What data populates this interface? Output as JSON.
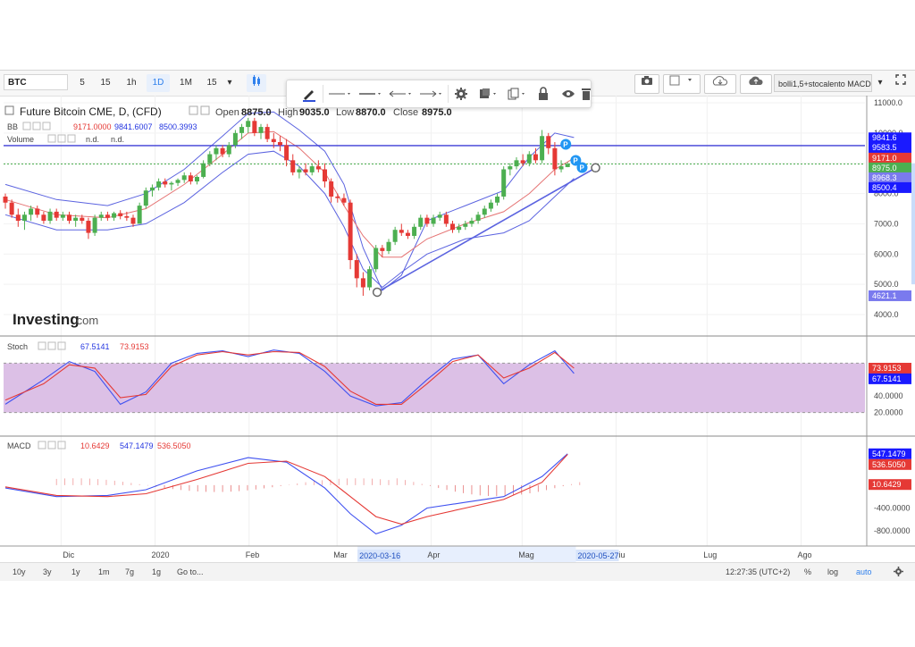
{
  "toolbar": {
    "symbol": "BTC",
    "intervals": [
      "5",
      "15",
      "1h",
      "1D",
      "1M",
      "15"
    ],
    "active_interval": "1D",
    "indicator_template": "bolli1,5+stocalento MACD"
  },
  "legend": {
    "title": "Future Bitcoin CME, D, (CFD)",
    "open_label": "Open",
    "open": "8875.0",
    "high_label": "High",
    "high": "9035.0",
    "low_label": "Low",
    "low": "8870.0",
    "close_label": "Close",
    "close": "8975.0",
    "bb_label": "BB",
    "bb_vals": [
      "9171.0000",
      "9841.6007",
      "8500.3993"
    ],
    "vol_label": "Volume",
    "vol_vals": [
      "n.d.",
      "n.d."
    ],
    "stoch_label": "Stoch",
    "stoch_vals": [
      "67.5141",
      "73.9153"
    ],
    "macd_label": "MACD",
    "macd_vals": [
      "10.6429",
      "547.1479",
      "536.5050"
    ]
  },
  "watermark": {
    "brand": "Investing",
    "suffix": ".com"
  },
  "colors": {
    "up": "#4caf50",
    "down": "#e53935",
    "bb_band": "#5b63e0",
    "bb_mid": "#e57373",
    "hline": "#3d3dd6",
    "trend": "#5b63e0",
    "stoch_fill": "#dcc0e6",
    "k_line": "#3f51f0",
    "d_line": "#e53935"
  },
  "price_axis": {
    "ticks": [
      "11000.0",
      "10000.0",
      "9000.0",
      "8000.0",
      "7000.0",
      "6000.0",
      "5000.0",
      "4000.0"
    ],
    "tags": [
      {
        "label": "9841.6",
        "color": "#1a1aff"
      },
      {
        "label": "9583.5",
        "color": "#1a1aff"
      },
      {
        "label": "9171.0",
        "color": "#e53935"
      },
      {
        "label": "8975.0",
        "color": "#4caf50"
      },
      {
        "label": "8968.3",
        "color": "#7a7aee"
      },
      {
        "label": "8500.4",
        "color": "#1a1aff"
      },
      {
        "label": "4621.1",
        "color": "#7a7aee"
      }
    ]
  },
  "stoch_axis": {
    "ticks": [
      "60.0000",
      "40.0000",
      "20.0000"
    ],
    "tags": [
      {
        "label": "73.9153",
        "color": "#e53935"
      },
      {
        "label": "67.5141",
        "color": "#1a1aff"
      }
    ]
  },
  "macd_axis": {
    "ticks": [
      "400.0000",
      "-400.0000",
      "-800.0000"
    ],
    "tags": [
      {
        "label": "547.1479",
        "color": "#1a1aff"
      },
      {
        "label": "536.5050",
        "color": "#e53935"
      },
      {
        "label": "10.6429",
        "color": "#e53935"
      }
    ]
  },
  "time_axis": {
    "labels": [
      "Dic",
      "2020",
      "Feb",
      "Mar",
      "Apr",
      "Mag",
      "Giu",
      "Lug",
      "Ago"
    ],
    "highlight_labels": [
      "2020-03-16",
      "2020-05-27"
    ]
  },
  "bottom_bar": {
    "ranges": [
      "10y",
      "3y",
      "1y",
      "1m",
      "7g",
      "1g",
      "Go to..."
    ],
    "clock": "12:27:35 (UTC+2)",
    "scale_opts": [
      "%",
      "log",
      "auto"
    ]
  },
  "chart_data": [
    {
      "type": "candlestick",
      "title": "Future Bitcoin CME, D, (CFD)",
      "x_range": [
        "2019-11-15",
        "2020-08-25"
      ],
      "ylim": [
        4000,
        11000
      ],
      "ohlc": [
        [
          7900,
          8000,
          7500,
          7700
        ],
        [
          7700,
          7800,
          7200,
          7300
        ],
        [
          7300,
          7500,
          6900,
          7100
        ],
        [
          7100,
          7400,
          6800,
          7300
        ],
        [
          7300,
          7600,
          7100,
          7500
        ],
        [
          7500,
          7600,
          7200,
          7300
        ],
        [
          7300,
          7400,
          7000,
          7100
        ],
        [
          7100,
          7500,
          7000,
          7400
        ],
        [
          7400,
          7500,
          7100,
          7200
        ],
        [
          7200,
          7400,
          7100,
          7300
        ],
        [
          7300,
          7400,
          7000,
          7100
        ],
        [
          7100,
          7300,
          6900,
          7200
        ],
        [
          7200,
          7300,
          7000,
          7100
        ],
        [
          7100,
          7200,
          6500,
          6700
        ],
        [
          6700,
          7300,
          6600,
          7200
        ],
        [
          7200,
          7400,
          7100,
          7300
        ],
        [
          7300,
          7400,
          7100,
          7200
        ],
        [
          7200,
          7400,
          7100,
          7350
        ],
        [
          7350,
          7450,
          7150,
          7250
        ],
        [
          7250,
          7400,
          7100,
          7200
        ],
        [
          7200,
          7300,
          6900,
          7000
        ],
        [
          7000,
          7700,
          7000,
          7600
        ],
        [
          7600,
          8200,
          7500,
          8100
        ],
        [
          8100,
          8300,
          7900,
          8200
        ],
        [
          8200,
          8500,
          8100,
          8400
        ],
        [
          8400,
          8500,
          8200,
          8300
        ],
        [
          8300,
          8400,
          8100,
          8350
        ],
        [
          8350,
          8500,
          8250,
          8450
        ],
        [
          8450,
          8700,
          8350,
          8600
        ],
        [
          8600,
          8700,
          8300,
          8400
        ],
        [
          8400,
          8600,
          8300,
          8550
        ],
        [
          8550,
          9100,
          8500,
          9000
        ],
        [
          9000,
          9400,
          8900,
          9300
        ],
        [
          9300,
          9600,
          9100,
          9500
        ],
        [
          9500,
          9600,
          9200,
          9300
        ],
        [
          9300,
          9700,
          9200,
          9600
        ],
        [
          9600,
          10100,
          9500,
          10000
        ],
        [
          10000,
          10300,
          9800,
          10200
        ],
        [
          10200,
          10500,
          10000,
          10400
        ],
        [
          10400,
          10500,
          9900,
          10000
        ],
        [
          10000,
          10300,
          9800,
          10200
        ],
        [
          10200,
          10300,
          9700,
          9800
        ],
        [
          9800,
          10000,
          9500,
          9700
        ],
        [
          9700,
          9900,
          9400,
          9600
        ],
        [
          9600,
          9800,
          8900,
          9100
        ],
        [
          9100,
          9300,
          8600,
          8700
        ],
        [
          8700,
          8900,
          8500,
          8800
        ],
        [
          8800,
          9000,
          8600,
          8700
        ],
        [
          8700,
          9000,
          8600,
          8900
        ],
        [
          8900,
          9100,
          8700,
          8800
        ],
        [
          8800,
          9000,
          8200,
          8400
        ],
        [
          8400,
          8500,
          7700,
          7900
        ],
        [
          7900,
          8000,
          7700,
          7850
        ],
        [
          7850,
          8000,
          7600,
          7700
        ],
        [
          7700,
          7800,
          5500,
          5800
        ],
        [
          5800,
          6000,
          4900,
          5200
        ],
        [
          5200,
          5400,
          4621,
          4900
        ],
        [
          4900,
          5600,
          4800,
          5500
        ],
        [
          5500,
          6300,
          5400,
          6200
        ],
        [
          6200,
          6300,
          5900,
          6100
        ],
        [
          6100,
          6500,
          6000,
          6400
        ],
        [
          6400,
          6900,
          6300,
          6800
        ],
        [
          6800,
          7000,
          6600,
          6700
        ],
        [
          6700,
          6800,
          6500,
          6600
        ],
        [
          6600,
          7000,
          6500,
          6900
        ],
        [
          6900,
          7300,
          6800,
          7200
        ],
        [
          7200,
          7300,
          6900,
          7000
        ],
        [
          7000,
          7300,
          6900,
          7200
        ],
        [
          7200,
          7400,
          7100,
          7300
        ],
        [
          7300,
          7400,
          6900,
          7000
        ],
        [
          7000,
          7100,
          6700,
          6800
        ],
        [
          6800,
          7000,
          6700,
          6900
        ],
        [
          6900,
          7100,
          6800,
          7000
        ],
        [
          7000,
          7200,
          6900,
          7100
        ],
        [
          7100,
          7400,
          7000,
          7300
        ],
        [
          7300,
          7600,
          7200,
          7500
        ],
        [
          7500,
          7800,
          7400,
          7700
        ],
        [
          7700,
          8000,
          7600,
          7900
        ],
        [
          7900,
          8900,
          7800,
          8800
        ],
        [
          8800,
          9000,
          8600,
          8900
        ],
        [
          8900,
          9200,
          8800,
          9100
        ],
        [
          9100,
          9300,
          8900,
          9000
        ],
        [
          9000,
          9400,
          8900,
          9300
        ],
        [
          9300,
          9500,
          9000,
          9100
        ],
        [
          9100,
          10100,
          9000,
          9900
        ],
        [
          9900,
          10000,
          9300,
          9500
        ],
        [
          9500,
          9700,
          8600,
          8800
        ],
        [
          8800,
          9100,
          8700,
          8900
        ],
        [
          8875,
          9035,
          8870,
          8975
        ]
      ],
      "bb_upper_points": [
        [
          0,
          8300
        ],
        [
          8,
          7800
        ],
        [
          16,
          7600
        ],
        [
          22,
          8000
        ],
        [
          28,
          8800
        ],
        [
          34,
          9900
        ],
        [
          38,
          10650
        ],
        [
          42,
          10700
        ],
        [
          46,
          10100
        ],
        [
          50,
          9400
        ],
        [
          53,
          8300
        ],
        [
          56,
          6200
        ],
        [
          59,
          4800
        ],
        [
          62,
          5300
        ],
        [
          66,
          7100
        ],
        [
          72,
          7600
        ],
        [
          78,
          8100
        ],
        [
          82,
          9200
        ],
        [
          86,
          10000
        ],
        [
          89,
          9850
        ]
      ],
      "bb_mid_points": [
        [
          0,
          7800
        ],
        [
          8,
          7300
        ],
        [
          16,
          7200
        ],
        [
          22,
          7500
        ],
        [
          28,
          8300
        ],
        [
          34,
          9300
        ],
        [
          38,
          10000
        ],
        [
          42,
          10050
        ],
        [
          46,
          9500
        ],
        [
          50,
          8700
        ],
        [
          53,
          7600
        ],
        [
          56,
          6600
        ],
        [
          59,
          5900
        ],
        [
          62,
          5900
        ],
        [
          66,
          6500
        ],
        [
          72,
          7000
        ],
        [
          78,
          7400
        ],
        [
          82,
          8000
        ],
        [
          86,
          8800
        ],
        [
          89,
          9171
        ]
      ],
      "bb_lower_points": [
        [
          0,
          7300
        ],
        [
          8,
          6800
        ],
        [
          16,
          6800
        ],
        [
          22,
          7000
        ],
        [
          28,
          7700
        ],
        [
          34,
          8700
        ],
        [
          38,
          9300
        ],
        [
          42,
          9400
        ],
        [
          46,
          8900
        ],
        [
          50,
          8000
        ],
        [
          53,
          6900
        ],
        [
          56,
          5500
        ],
        [
          59,
          4900
        ],
        [
          62,
          5400
        ],
        [
          66,
          6000
        ],
        [
          72,
          6500
        ],
        [
          78,
          6700
        ],
        [
          82,
          7100
        ],
        [
          86,
          7900
        ],
        [
          89,
          8500
        ]
      ],
      "horizontal_line": 9583.5,
      "last_price_line": 8975.0,
      "trend_line": [
        [
          "2020-03-16",
          4621.1
        ],
        [
          "2020-05-27",
          8968.3
        ]
      ]
    },
    {
      "type": "line",
      "title": "Stoch",
      "ylim": [
        0,
        100
      ],
      "band": [
        20,
        80
      ],
      "series": [
        {
          "name": "67.5141",
          "points": [
            [
              0,
              30
            ],
            [
              6,
              60
            ],
            [
              10,
              82
            ],
            [
              14,
              70
            ],
            [
              18,
              30
            ],
            [
              22,
              45
            ],
            [
              26,
              80
            ],
            [
              30,
              92
            ],
            [
              34,
              95
            ],
            [
              38,
              88
            ],
            [
              42,
              96
            ],
            [
              46,
              92
            ],
            [
              50,
              70
            ],
            [
              54,
              40
            ],
            [
              58,
              28
            ],
            [
              62,
              32
            ],
            [
              66,
              60
            ],
            [
              70,
              85
            ],
            [
              74,
              90
            ],
            [
              78,
              55
            ],
            [
              82,
              78
            ],
            [
              86,
              95
            ],
            [
              89,
              67.5
            ]
          ]
        },
        {
          "name": "73.9153",
          "points": [
            [
              0,
              35
            ],
            [
              6,
              55
            ],
            [
              10,
              78
            ],
            [
              14,
              74
            ],
            [
              18,
              38
            ],
            [
              22,
              42
            ],
            [
              26,
              76
            ],
            [
              30,
              90
            ],
            [
              34,
              94
            ],
            [
              38,
              90
            ],
            [
              42,
              94
            ],
            [
              46,
              93
            ],
            [
              50,
              76
            ],
            [
              54,
              46
            ],
            [
              58,
              30
            ],
            [
              62,
              30
            ],
            [
              66,
              55
            ],
            [
              70,
              82
            ],
            [
              74,
              90
            ],
            [
              78,
              62
            ],
            [
              82,
              74
            ],
            [
              86,
              93
            ],
            [
              89,
              73.9
            ]
          ]
        }
      ]
    },
    {
      "type": "line",
      "title": "MACD",
      "ylim": [
        -1000,
        700
      ],
      "series": [
        {
          "name": "547.1479",
          "points": [
            [
              0,
              -50
            ],
            [
              8,
              -200
            ],
            [
              16,
              -180
            ],
            [
              22,
              -80
            ],
            [
              30,
              250
            ],
            [
              38,
              480
            ],
            [
              44,
              400
            ],
            [
              50,
              -50
            ],
            [
              54,
              -500
            ],
            [
              58,
              -850
            ],
            [
              62,
              -700
            ],
            [
              66,
              -400
            ],
            [
              72,
              -300
            ],
            [
              78,
              -200
            ],
            [
              84,
              150
            ],
            [
              88,
              547
            ]
          ]
        },
        {
          "name": "536.5050",
          "points": [
            [
              0,
              -30
            ],
            [
              8,
              -180
            ],
            [
              16,
              -200
            ],
            [
              22,
              -150
            ],
            [
              30,
              100
            ],
            [
              38,
              380
            ],
            [
              44,
              420
            ],
            [
              50,
              150
            ],
            [
              54,
              -200
            ],
            [
              58,
              -550
            ],
            [
              62,
              -680
            ],
            [
              66,
              -550
            ],
            [
              72,
              -400
            ],
            [
              78,
              -250
            ],
            [
              84,
              50
            ],
            [
              88,
              537
            ]
          ]
        }
      ],
      "histogram_last": 10.6429
    }
  ]
}
